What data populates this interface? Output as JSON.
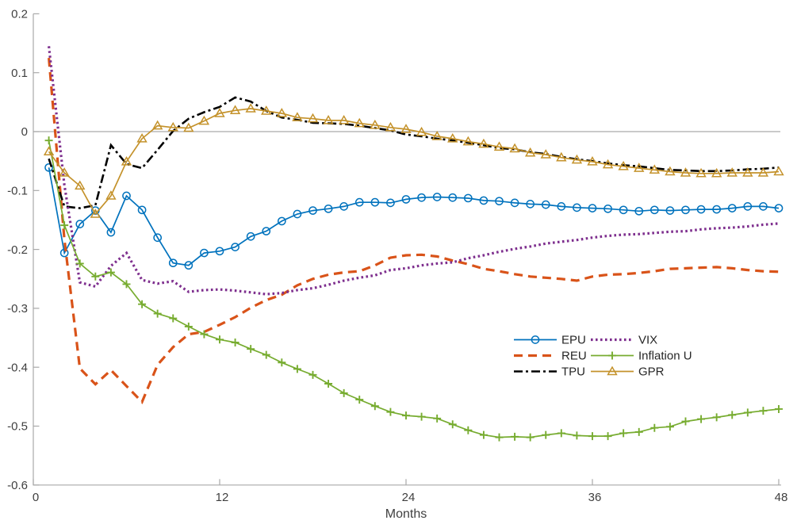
{
  "figure": {
    "background": "#ffffff"
  },
  "chart_data": {
    "type": "line",
    "title": "",
    "xlabel": "Months",
    "ylabel": "",
    "x_axis": {
      "min": 0,
      "max": 48,
      "ticks": [
        0,
        12,
        24,
        36,
        48
      ]
    },
    "y_axis": {
      "min": -0.6,
      "max": 0.2,
      "ticks": [
        0.2,
        0.1,
        0,
        -0.1,
        -0.2,
        -0.3,
        -0.4,
        -0.5,
        -0.6
      ]
    },
    "zero_line": true,
    "grid": "zero-line-only",
    "axis_color": "#a9a9a9",
    "tick_label_color": "#3f3f3f",
    "legend": {
      "position": "center-right",
      "border": "none",
      "columns": [
        [
          "EPU",
          "REU",
          "TPU"
        ],
        [
          "VIX",
          "Inflation U",
          "GPR"
        ]
      ]
    },
    "months": [
      1,
      2,
      3,
      4,
      5,
      6,
      7,
      8,
      9,
      10,
      11,
      12,
      13,
      14,
      15,
      16,
      17,
      18,
      19,
      20,
      21,
      22,
      23,
      24,
      25,
      26,
      27,
      28,
      29,
      30,
      31,
      32,
      33,
      34,
      35,
      36,
      37,
      38,
      39,
      40,
      41,
      42,
      43,
      44,
      45,
      46,
      47,
      48
    ],
    "series": [
      {
        "name": "EPU",
        "color": "#0072BD",
        "line_style": "solid",
        "marker": "circle",
        "values": [
          -0.061,
          -0.206,
          -0.157,
          -0.134,
          -0.171,
          -0.109,
          -0.133,
          -0.18,
          -0.223,
          -0.227,
          -0.206,
          -0.203,
          -0.196,
          -0.178,
          -0.169,
          -0.152,
          -0.14,
          -0.134,
          -0.131,
          -0.127,
          -0.12,
          -0.12,
          -0.121,
          -0.115,
          -0.112,
          -0.111,
          -0.112,
          -0.113,
          -0.117,
          -0.118,
          -0.121,
          -0.123,
          -0.124,
          -0.127,
          -0.129,
          -0.13,
          -0.131,
          -0.133,
          -0.135,
          -0.133,
          -0.134,
          -0.133,
          -0.132,
          -0.132,
          -0.13,
          -0.127,
          -0.127,
          -0.13
        ]
      },
      {
        "name": "REU",
        "color": "#D95319",
        "line_style": "dashed",
        "marker": "none",
        "values": [
          0.125,
          -0.183,
          -0.402,
          -0.429,
          -0.405,
          -0.432,
          -0.459,
          -0.396,
          -0.366,
          -0.344,
          -0.34,
          -0.328,
          -0.315,
          -0.299,
          -0.286,
          -0.277,
          -0.261,
          -0.25,
          -0.243,
          -0.239,
          -0.237,
          -0.227,
          -0.214,
          -0.21,
          -0.209,
          -0.212,
          -0.219,
          -0.225,
          -0.233,
          -0.237,
          -0.242,
          -0.246,
          -0.248,
          -0.25,
          -0.253,
          -0.246,
          -0.243,
          -0.242,
          -0.24,
          -0.237,
          -0.233,
          -0.232,
          -0.231,
          -0.23,
          -0.232,
          -0.235,
          -0.237,
          -0.238
        ]
      },
      {
        "name": "TPU",
        "color": "#000000",
        "line_style": "dashdot",
        "marker": "none",
        "values": [
          -0.046,
          -0.127,
          -0.13,
          -0.125,
          -0.023,
          -0.055,
          -0.062,
          -0.031,
          0.001,
          0.022,
          0.033,
          0.042,
          0.058,
          0.051,
          0.035,
          0.024,
          0.02,
          0.015,
          0.014,
          0.013,
          0.01,
          0.006,
          0.002,
          -0.005,
          -0.008,
          -0.012,
          -0.015,
          -0.019,
          -0.023,
          -0.028,
          -0.03,
          -0.035,
          -0.038,
          -0.043,
          -0.047,
          -0.05,
          -0.054,
          -0.057,
          -0.059,
          -0.062,
          -0.065,
          -0.066,
          -0.067,
          -0.067,
          -0.066,
          -0.064,
          -0.063,
          -0.061
        ]
      },
      {
        "name": "VIX",
        "color": "#7E2F8E",
        "line_style": "dotted",
        "marker": "none",
        "values": [
          0.145,
          -0.091,
          -0.256,
          -0.263,
          -0.228,
          -0.206,
          -0.252,
          -0.258,
          -0.254,
          -0.272,
          -0.269,
          -0.268,
          -0.27,
          -0.273,
          -0.276,
          -0.274,
          -0.269,
          -0.266,
          -0.26,
          -0.253,
          -0.248,
          -0.244,
          -0.235,
          -0.232,
          -0.227,
          -0.224,
          -0.222,
          -0.215,
          -0.21,
          -0.204,
          -0.199,
          -0.195,
          -0.19,
          -0.187,
          -0.184,
          -0.18,
          -0.177,
          -0.175,
          -0.174,
          -0.172,
          -0.17,
          -0.169,
          -0.166,
          -0.164,
          -0.163,
          -0.161,
          -0.158,
          -0.156
        ]
      },
      {
        "name": "Inflation U",
        "color": "#77AC30",
        "line_style": "solid",
        "marker": "plus",
        "values": [
          -0.015,
          -0.159,
          -0.224,
          -0.246,
          -0.239,
          -0.259,
          -0.293,
          -0.309,
          -0.317,
          -0.331,
          -0.344,
          -0.353,
          -0.358,
          -0.369,
          -0.379,
          -0.392,
          -0.403,
          -0.413,
          -0.428,
          -0.444,
          -0.455,
          -0.466,
          -0.476,
          -0.482,
          -0.484,
          -0.487,
          -0.497,
          -0.507,
          -0.515,
          -0.519,
          -0.518,
          -0.519,
          -0.515,
          -0.512,
          -0.516,
          -0.517,
          -0.517,
          -0.512,
          -0.51,
          -0.503,
          -0.501,
          -0.492,
          -0.488,
          -0.485,
          -0.481,
          -0.477,
          -0.474,
          -0.471
        ]
      },
      {
        "name": "GPR",
        "color": "#C4922B",
        "line_style": "solid",
        "marker": "triangle",
        "values": [
          -0.034,
          -0.07,
          -0.092,
          -0.14,
          -0.109,
          -0.051,
          -0.012,
          0.01,
          0.007,
          0.006,
          0.018,
          0.031,
          0.036,
          0.039,
          0.035,
          0.031,
          0.024,
          0.022,
          0.019,
          0.019,
          0.014,
          0.011,
          0.007,
          0.004,
          -0.001,
          -0.008,
          -0.012,
          -0.017,
          -0.021,
          -0.026,
          -0.029,
          -0.036,
          -0.039,
          -0.044,
          -0.048,
          -0.051,
          -0.056,
          -0.059,
          -0.062,
          -0.065,
          -0.068,
          -0.07,
          -0.071,
          -0.071,
          -0.07,
          -0.07,
          -0.07,
          -0.068
        ]
      }
    ]
  }
}
